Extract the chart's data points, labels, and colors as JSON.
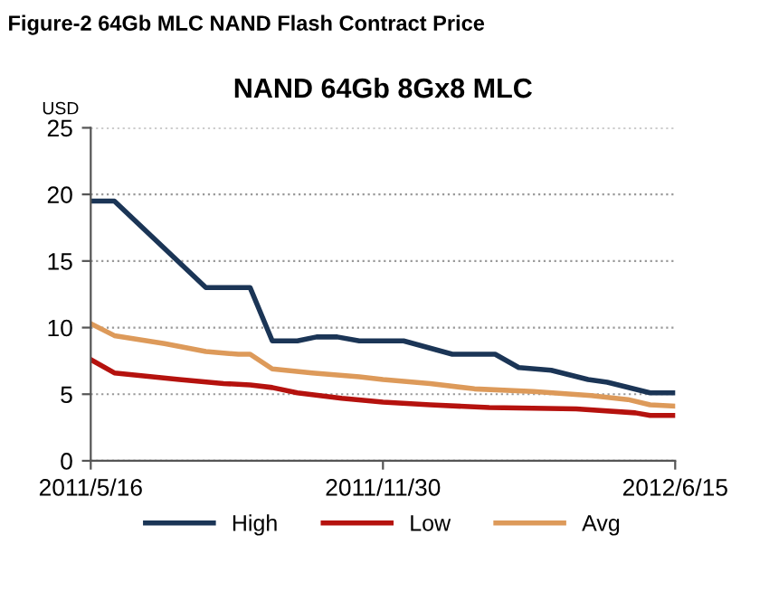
{
  "chart_data": {
    "type": "line",
    "title": "NAND 64Gb 8Gx8 MLC",
    "subtitle": "Figure-2 64Gb MLC NAND Flash Contract Price",
    "ylabel": "USD",
    "xlim": [
      "2011-05-16",
      "2012-06-15"
    ],
    "xticks": [
      {
        "value": "2011-05-16",
        "label": "2011/5/16"
      },
      {
        "value": "2011-11-30",
        "label": "2011/11/30"
      },
      {
        "value": "2012-06-15",
        "label": "2012/6/15"
      }
    ],
    "ylim": [
      0,
      25
    ],
    "yticks": [
      0,
      5,
      10,
      15,
      20,
      25
    ],
    "grid": "y",
    "legend": "bottom",
    "line_style": "solid",
    "marker": "none",
    "series": [
      {
        "name": "High",
        "color": "#1b3556",
        "x": [
          "2011-05-16",
          "2011-06-01",
          "2011-08-02",
          "2011-09-01",
          "2011-09-16",
          "2011-10-03",
          "2011-10-16",
          "2011-10-30",
          "2011-11-14",
          "2011-12-14",
          "2012-01-16",
          "2012-02-14",
          "2012-03-01",
          "2012-03-23",
          "2012-04-17",
          "2012-04-30",
          "2012-05-29",
          "2012-06-15"
        ],
        "values": [
          19.5,
          19.5,
          13,
          13,
          9,
          9,
          9.3,
          9.3,
          9,
          9,
          8,
          8,
          7,
          6.8,
          6.1,
          5.9,
          5.1,
          5.1
        ]
      },
      {
        "name": "Low",
        "color": "#b5120e",
        "x": [
          "2011-05-16",
          "2011-06-01",
          "2011-07-15",
          "2011-08-14",
          "2011-09-01",
          "2011-09-16",
          "2011-10-03",
          "2011-11-02",
          "2011-11-30",
          "2012-01-01",
          "2012-02-10",
          "2012-04-09",
          "2012-05-19",
          "2012-05-29",
          "2012-06-15"
        ],
        "values": [
          7.6,
          6.6,
          6.1,
          5.8,
          5.7,
          5.5,
          5.1,
          4.7,
          4.4,
          4.2,
          4.0,
          3.9,
          3.6,
          3.4,
          3.4
        ]
      },
      {
        "name": "Avg",
        "color": "#dd9a5a",
        "x": [
          "2011-05-16",
          "2011-06-01",
          "2011-07-05",
          "2011-08-02",
          "2011-08-24",
          "2011-09-01",
          "2011-09-16",
          "2011-10-13",
          "2011-11-14",
          "2011-11-30",
          "2012-01-01",
          "2012-01-31",
          "2012-03-11",
          "2012-04-19",
          "2012-05-14",
          "2012-05-29",
          "2012-06-15"
        ],
        "values": [
          10.3,
          9.4,
          8.8,
          8.2,
          8.0,
          8.0,
          6.9,
          6.6,
          6.3,
          6.1,
          5.8,
          5.4,
          5.2,
          4.9,
          4.6,
          4.2,
          4.1
        ]
      }
    ]
  }
}
